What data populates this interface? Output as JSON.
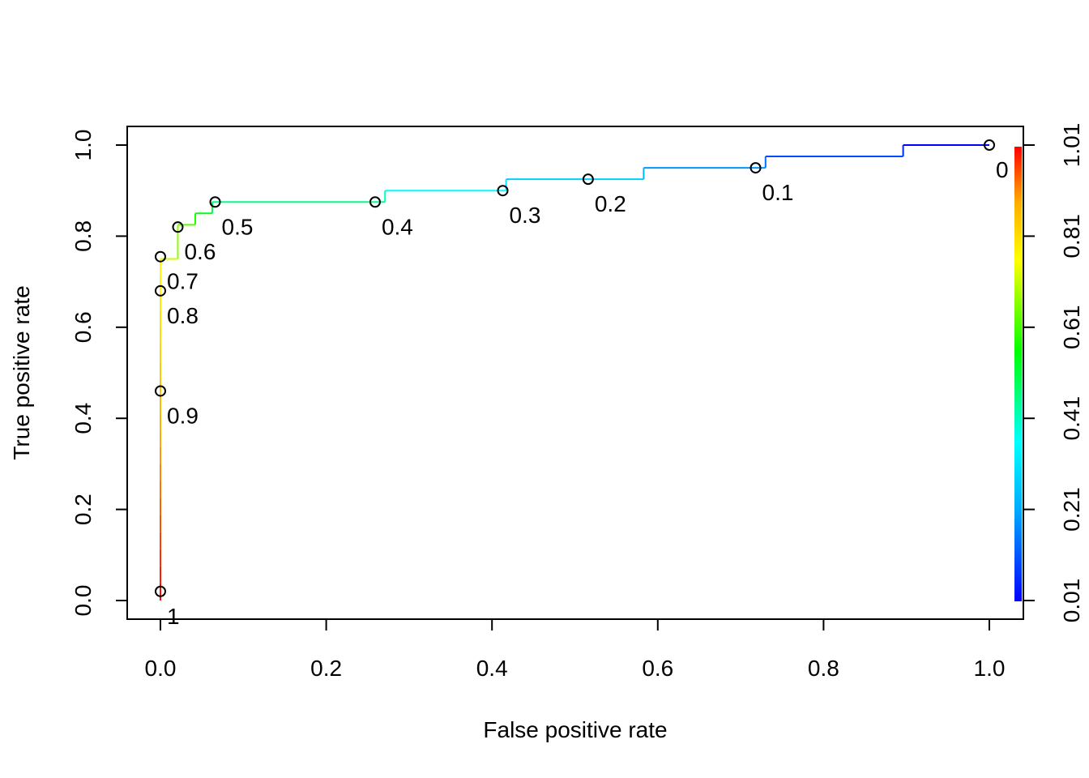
{
  "chart_data": {
    "type": "line",
    "title": "",
    "xlabel": "False positive rate",
    "ylabel": "True positive rate",
    "xlim": [
      0,
      1
    ],
    "ylim": [
      0,
      1
    ],
    "x_ticks": [
      "0.0",
      "0.2",
      "0.4",
      "0.6",
      "0.8",
      "1.0"
    ],
    "y_ticks": [
      "0.0",
      "0.2",
      "0.4",
      "0.6",
      "0.8",
      "1.0"
    ],
    "grid": false,
    "legend": "none",
    "colorbar": {
      "placement": "right",
      "ticks": [
        "0.01",
        "0.21",
        "0.41",
        "0.61",
        "0.81",
        "1.01"
      ]
    },
    "series": [
      {
        "curve": [
          [
            1.0,
            1.0
          ],
          [
            0.896,
            1.0
          ],
          [
            0.896,
            0.975
          ],
          [
            0.73,
            0.975
          ],
          [
            0.73,
            0.95
          ],
          [
            0.583,
            0.95
          ],
          [
            0.583,
            0.925
          ],
          [
            0.417,
            0.925
          ],
          [
            0.417,
            0.9
          ],
          [
            0.271,
            0.9
          ],
          [
            0.271,
            0.875
          ],
          [
            0.0625,
            0.875
          ],
          [
            0.0625,
            0.85
          ],
          [
            0.042,
            0.85
          ],
          [
            0.042,
            0.825
          ],
          [
            0.021,
            0.825
          ],
          [
            0.021,
            0.75
          ],
          [
            0.0,
            0.75
          ],
          [
            0.0,
            0.0
          ]
        ],
        "cutoff_points": [
          {
            "label": "1",
            "fpr": 0.0,
            "tpr": 0.02
          },
          {
            "label": "0.9",
            "fpr": 0.0,
            "tpr": 0.46
          },
          {
            "label": "0.8",
            "fpr": 0.0,
            "tpr": 0.68
          },
          {
            "label": "0.7",
            "fpr": 0.0,
            "tpr": 0.755
          },
          {
            "label": "0.6",
            "fpr": 0.021,
            "tpr": 0.82
          },
          {
            "label": "0.5",
            "fpr": 0.066,
            "tpr": 0.875
          },
          {
            "label": "0.4",
            "fpr": 0.259,
            "tpr": 0.875
          },
          {
            "label": "0.3",
            "fpr": 0.413,
            "tpr": 0.9
          },
          {
            "label": "0.2",
            "fpr": 0.516,
            "tpr": 0.925
          },
          {
            "label": "0.1",
            "fpr": 0.718,
            "tpr": 0.95
          },
          {
            "label": "0",
            "fpr": 1.0,
            "tpr": 1.0
          }
        ]
      }
    ]
  }
}
